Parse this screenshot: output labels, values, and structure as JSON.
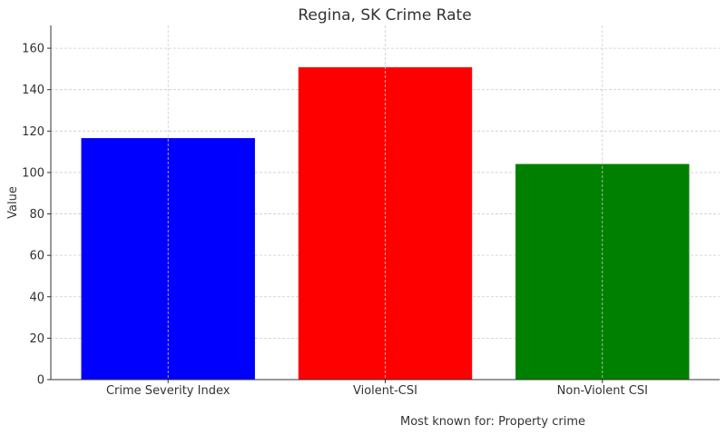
{
  "chart_data": {
    "type": "bar",
    "title": "Regina, SK Crime Rate",
    "xlabel": "",
    "ylabel": "Value",
    "categories": [
      "Crime Severity Index",
      "Violent-CSI",
      "Non-Violent CSI"
    ],
    "values": [
      116.6,
      150.8,
      104.1
    ],
    "colors": [
      "#0000ff",
      "#ff0000",
      "#008000"
    ],
    "ylim": [
      0,
      171
    ],
    "yticks": [
      0,
      20,
      40,
      60,
      80,
      100,
      120,
      140,
      160
    ],
    "grid": true,
    "annotation": "Most known for: Property crime"
  }
}
